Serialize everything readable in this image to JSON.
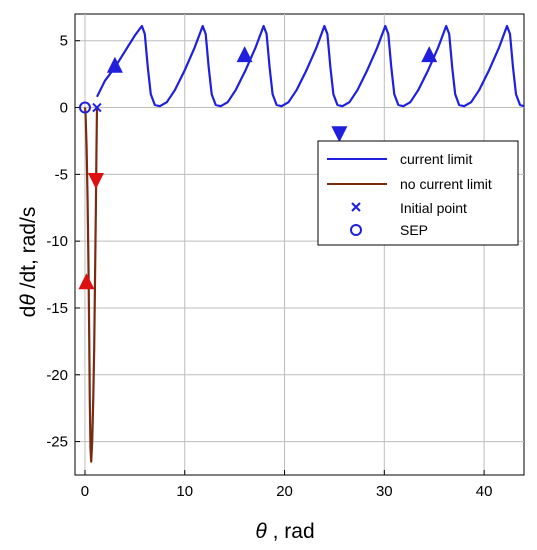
{
  "chart_data": {
    "type": "line",
    "xlabel_symbol": "θ",
    "xlabel_rest": " , rad",
    "ylabel_prefix": "d",
    "ylabel_symbol": "θ",
    "ylabel_rest": " /dt, rad/s",
    "xlim": [
      -1,
      44
    ],
    "ylim": [
      -27.5,
      7
    ],
    "xticks": [
      0,
      10,
      20,
      30,
      40
    ],
    "yticks": [
      5,
      0,
      -5,
      -10,
      -15,
      -20,
      -25
    ],
    "grid": true,
    "legend_position": "right",
    "legend": [
      {
        "label": "current limit",
        "marker": "line",
        "color": "#1f1fdd"
      },
      {
        "label": "no current limit",
        "marker": "line",
        "color": "#7a2a10"
      },
      {
        "label": "Initial point",
        "marker": "x",
        "color": "#1f1fdd"
      },
      {
        "label": "SEP",
        "marker": "o",
        "color": "#1f1fdd"
      }
    ],
    "series": [
      {
        "name": "current limit",
        "color": "#1f1fdd",
        "description_points": "limit cycle oscillating between ~0 and ~6.1 rad/s",
        "x": [
          1.2,
          2.0,
          3.0,
          4.0,
          5.0,
          5.7,
          6.0,
          6.3,
          6.6,
          7.0,
          7.5,
          8.2,
          9.0,
          10.0,
          11.0,
          11.8,
          12.1,
          12.4,
          12.7,
          13.1,
          13.6,
          14.3,
          15.1,
          16.1,
          17.1,
          17.9,
          18.2,
          18.5,
          18.8,
          19.2,
          19.7,
          20.4,
          21.2,
          22.2,
          23.2,
          24.0,
          24.3,
          24.6,
          24.9,
          25.3,
          25.8,
          26.5,
          27.3,
          28.3,
          29.3,
          30.1,
          30.4,
          30.7,
          31.0,
          31.4,
          31.9,
          32.6,
          33.4,
          34.4,
          35.4,
          36.2,
          36.5,
          36.8,
          37.1,
          37.5,
          38.0,
          38.7,
          39.5,
          40.5,
          41.5,
          42.3,
          42.6,
          42.9,
          43.2,
          43.6,
          44.0
        ],
        "y": [
          0.8,
          2.0,
          3.0,
          4.2,
          5.4,
          6.1,
          5.5,
          3.0,
          1.0,
          0.2,
          0.1,
          0.4,
          1.3,
          2.8,
          4.5,
          6.1,
          5.5,
          3.0,
          1.0,
          0.2,
          0.1,
          0.4,
          1.3,
          2.8,
          4.5,
          6.1,
          5.5,
          3.0,
          1.0,
          0.2,
          0.1,
          0.4,
          1.3,
          2.8,
          4.5,
          6.1,
          5.5,
          3.0,
          1.0,
          0.2,
          0.1,
          0.4,
          1.3,
          2.8,
          4.5,
          6.1,
          5.5,
          3.0,
          1.0,
          0.2,
          0.1,
          0.4,
          1.3,
          2.8,
          4.5,
          6.1,
          5.5,
          3.0,
          1.0,
          0.2,
          0.1,
          0.4,
          1.3,
          2.8,
          4.5,
          6.1,
          5.5,
          3.0,
          1.0,
          0.2,
          0.1
        ],
        "arrows": [
          {
            "x": 3.0,
            "y": 3.2,
            "direction": "up"
          },
          {
            "x": 16.0,
            "y": 4.0,
            "direction": "up"
          },
          {
            "x": 25.5,
            "y": -2.0,
            "direction": "down"
          },
          {
            "x": 34.5,
            "y": 4.0,
            "direction": "up"
          }
        ]
      },
      {
        "name": "no current limit",
        "color": "#7a2a10",
        "x": [
          1.2,
          1.15,
          1.08,
          1.0,
          0.92,
          0.82,
          0.72,
          0.62,
          0.55,
          0.48,
          0.42,
          0.35,
          0.26,
          0.16,
          0.06,
          0.0
        ],
        "y": [
          0.0,
          -3.0,
          -8.0,
          -13.0,
          -18.0,
          -22.0,
          -25.0,
          -26.5,
          -25.5,
          -22.0,
          -17.0,
          -12.0,
          -7.0,
          -3.0,
          -0.6,
          0.0
        ],
        "arrows": [
          {
            "x": 1.1,
            "y": -5.5,
            "direction": "down"
          },
          {
            "x": 0.15,
            "y": -13.0,
            "direction": "up"
          }
        ]
      }
    ],
    "points": [
      {
        "name": "Initial point",
        "x": 1.2,
        "y": 0.0,
        "marker": "x",
        "color": "#1f1fdd"
      },
      {
        "name": "SEP",
        "x": 0.0,
        "y": 0.0,
        "marker": "o",
        "color": "#1f1fdd"
      }
    ]
  }
}
